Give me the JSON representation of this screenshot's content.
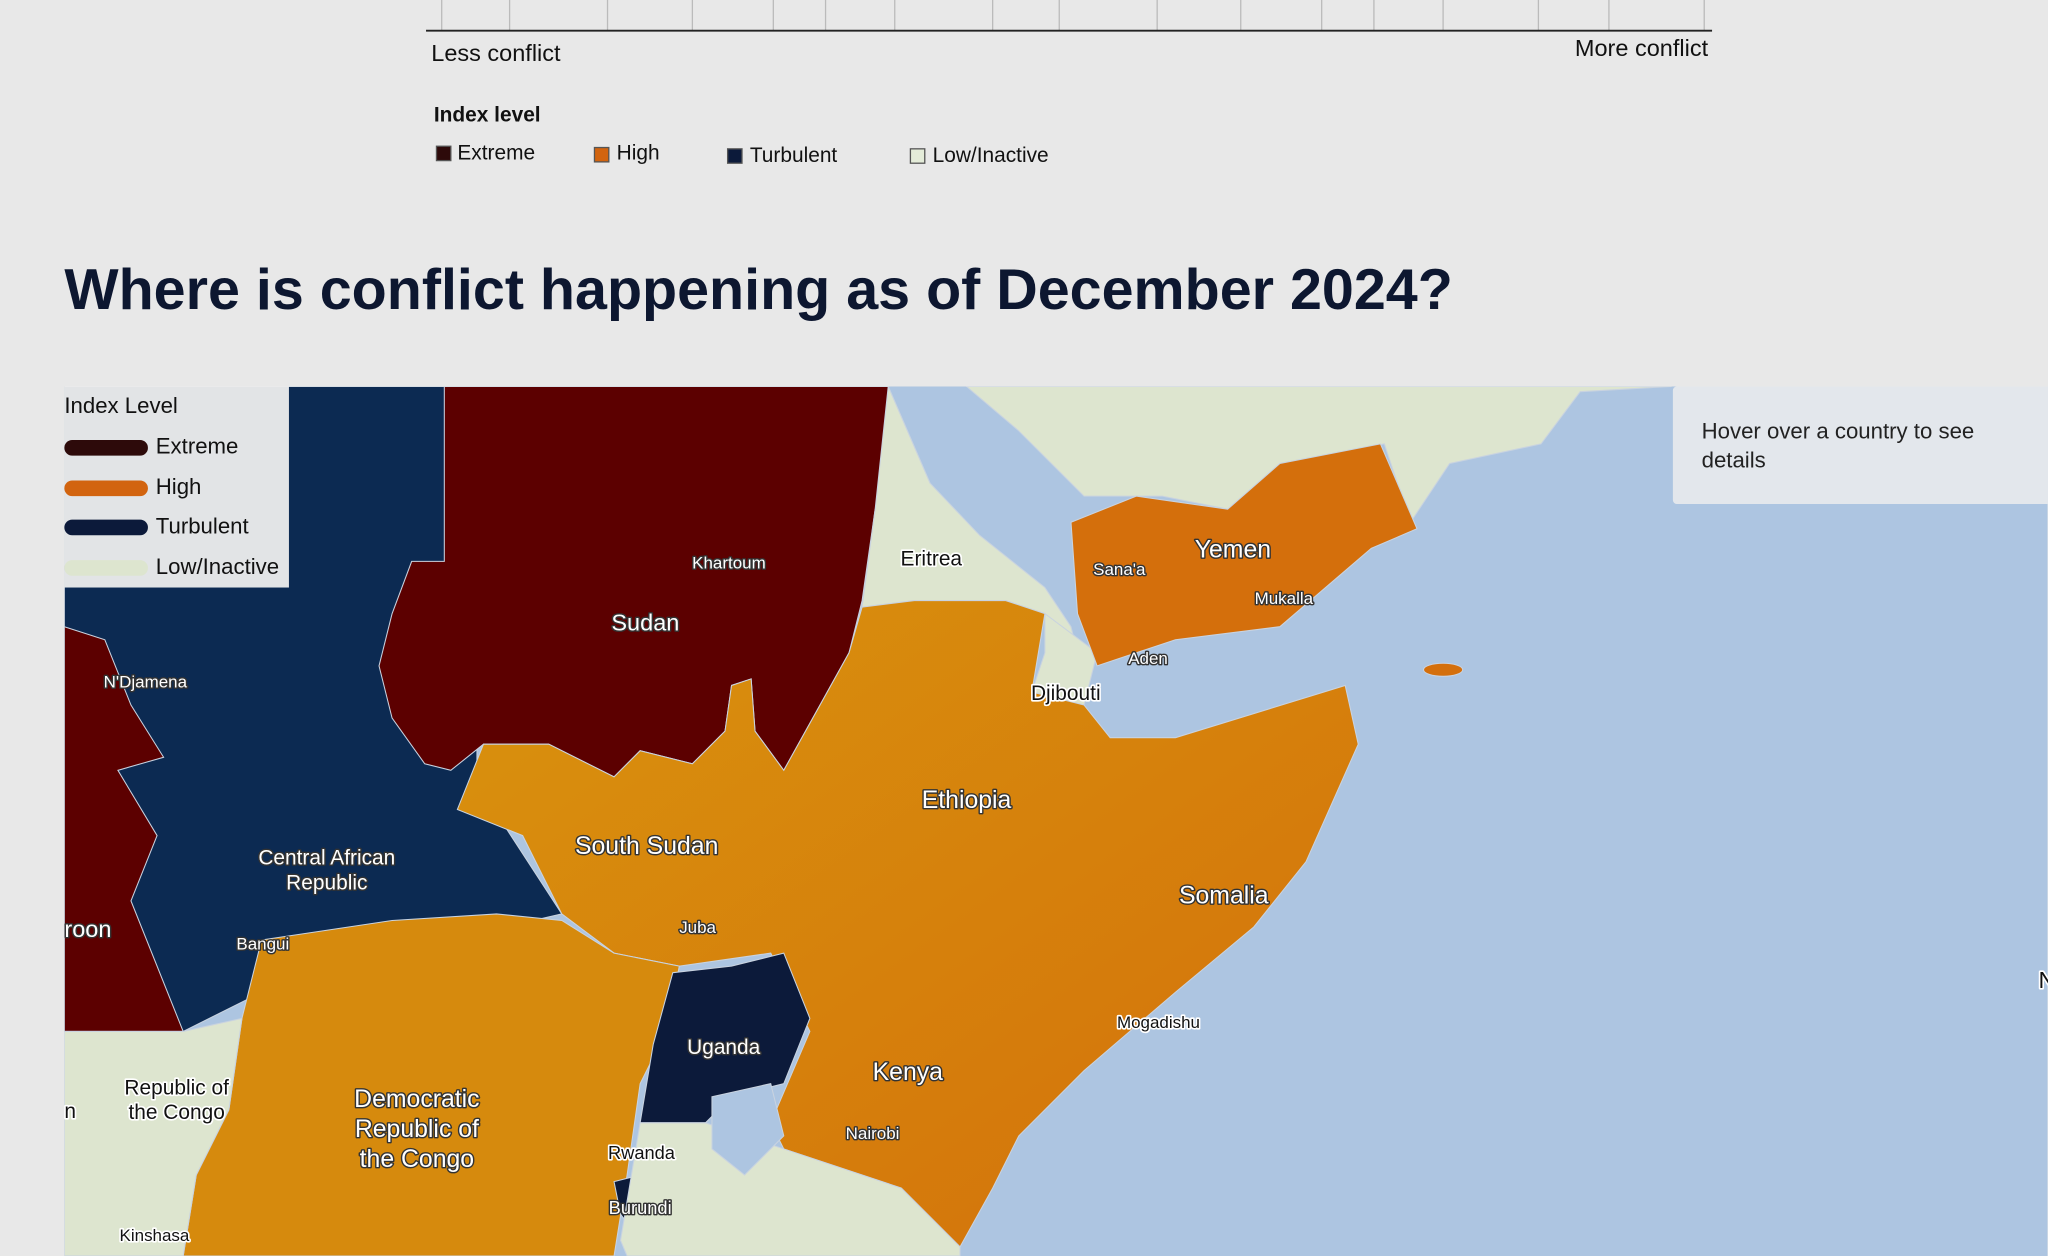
{
  "scale": {
    "left_label": "Less conflict",
    "right_label": "More conflict"
  },
  "index_legend": {
    "title": "Index level",
    "items": [
      "Extreme",
      "High",
      "Turbulent",
      "Low/Inactive"
    ]
  },
  "title": "Where is conflict happening as of December 2024?",
  "map": {
    "legend": {
      "title": "Index Level",
      "items": [
        "Extreme",
        "High",
        "Turbulent",
        "Low/Inactive"
      ]
    },
    "info_box": "Hover over a country to see details",
    "country_labels": {
      "sudan": "Sudan",
      "eritrea": "Eritrea",
      "yemen": "Yemen",
      "djibouti": "Djibouti",
      "ethiopia": "Ethiopia",
      "south_sudan": "South Sudan",
      "car": [
        "Central African",
        "Republic"
      ],
      "somalia": "Somalia",
      "uganda": "Uganda",
      "kenya": "Kenya",
      "congo": [
        "Republic of",
        "the Congo"
      ],
      "drc": [
        "Democratic",
        "Republic of",
        "the Congo"
      ],
      "rwanda": "Rwanda",
      "burundi": "Burundi",
      "cameroon_partial": "roon",
      "left_partial": "n",
      "right_partial": "N"
    },
    "city_labels": {
      "khartoum": "Khartoum",
      "ndjamena": "N'Djamena",
      "sanaa": "Sana'a",
      "mukalla": "Mukalla",
      "aden": "Aden",
      "juba": "Juba",
      "bangui": "Bangui",
      "mogadishu": "Mogadishu",
      "nairobi": "Nairobi",
      "kinshasa": "Kinshasa"
    }
  }
}
